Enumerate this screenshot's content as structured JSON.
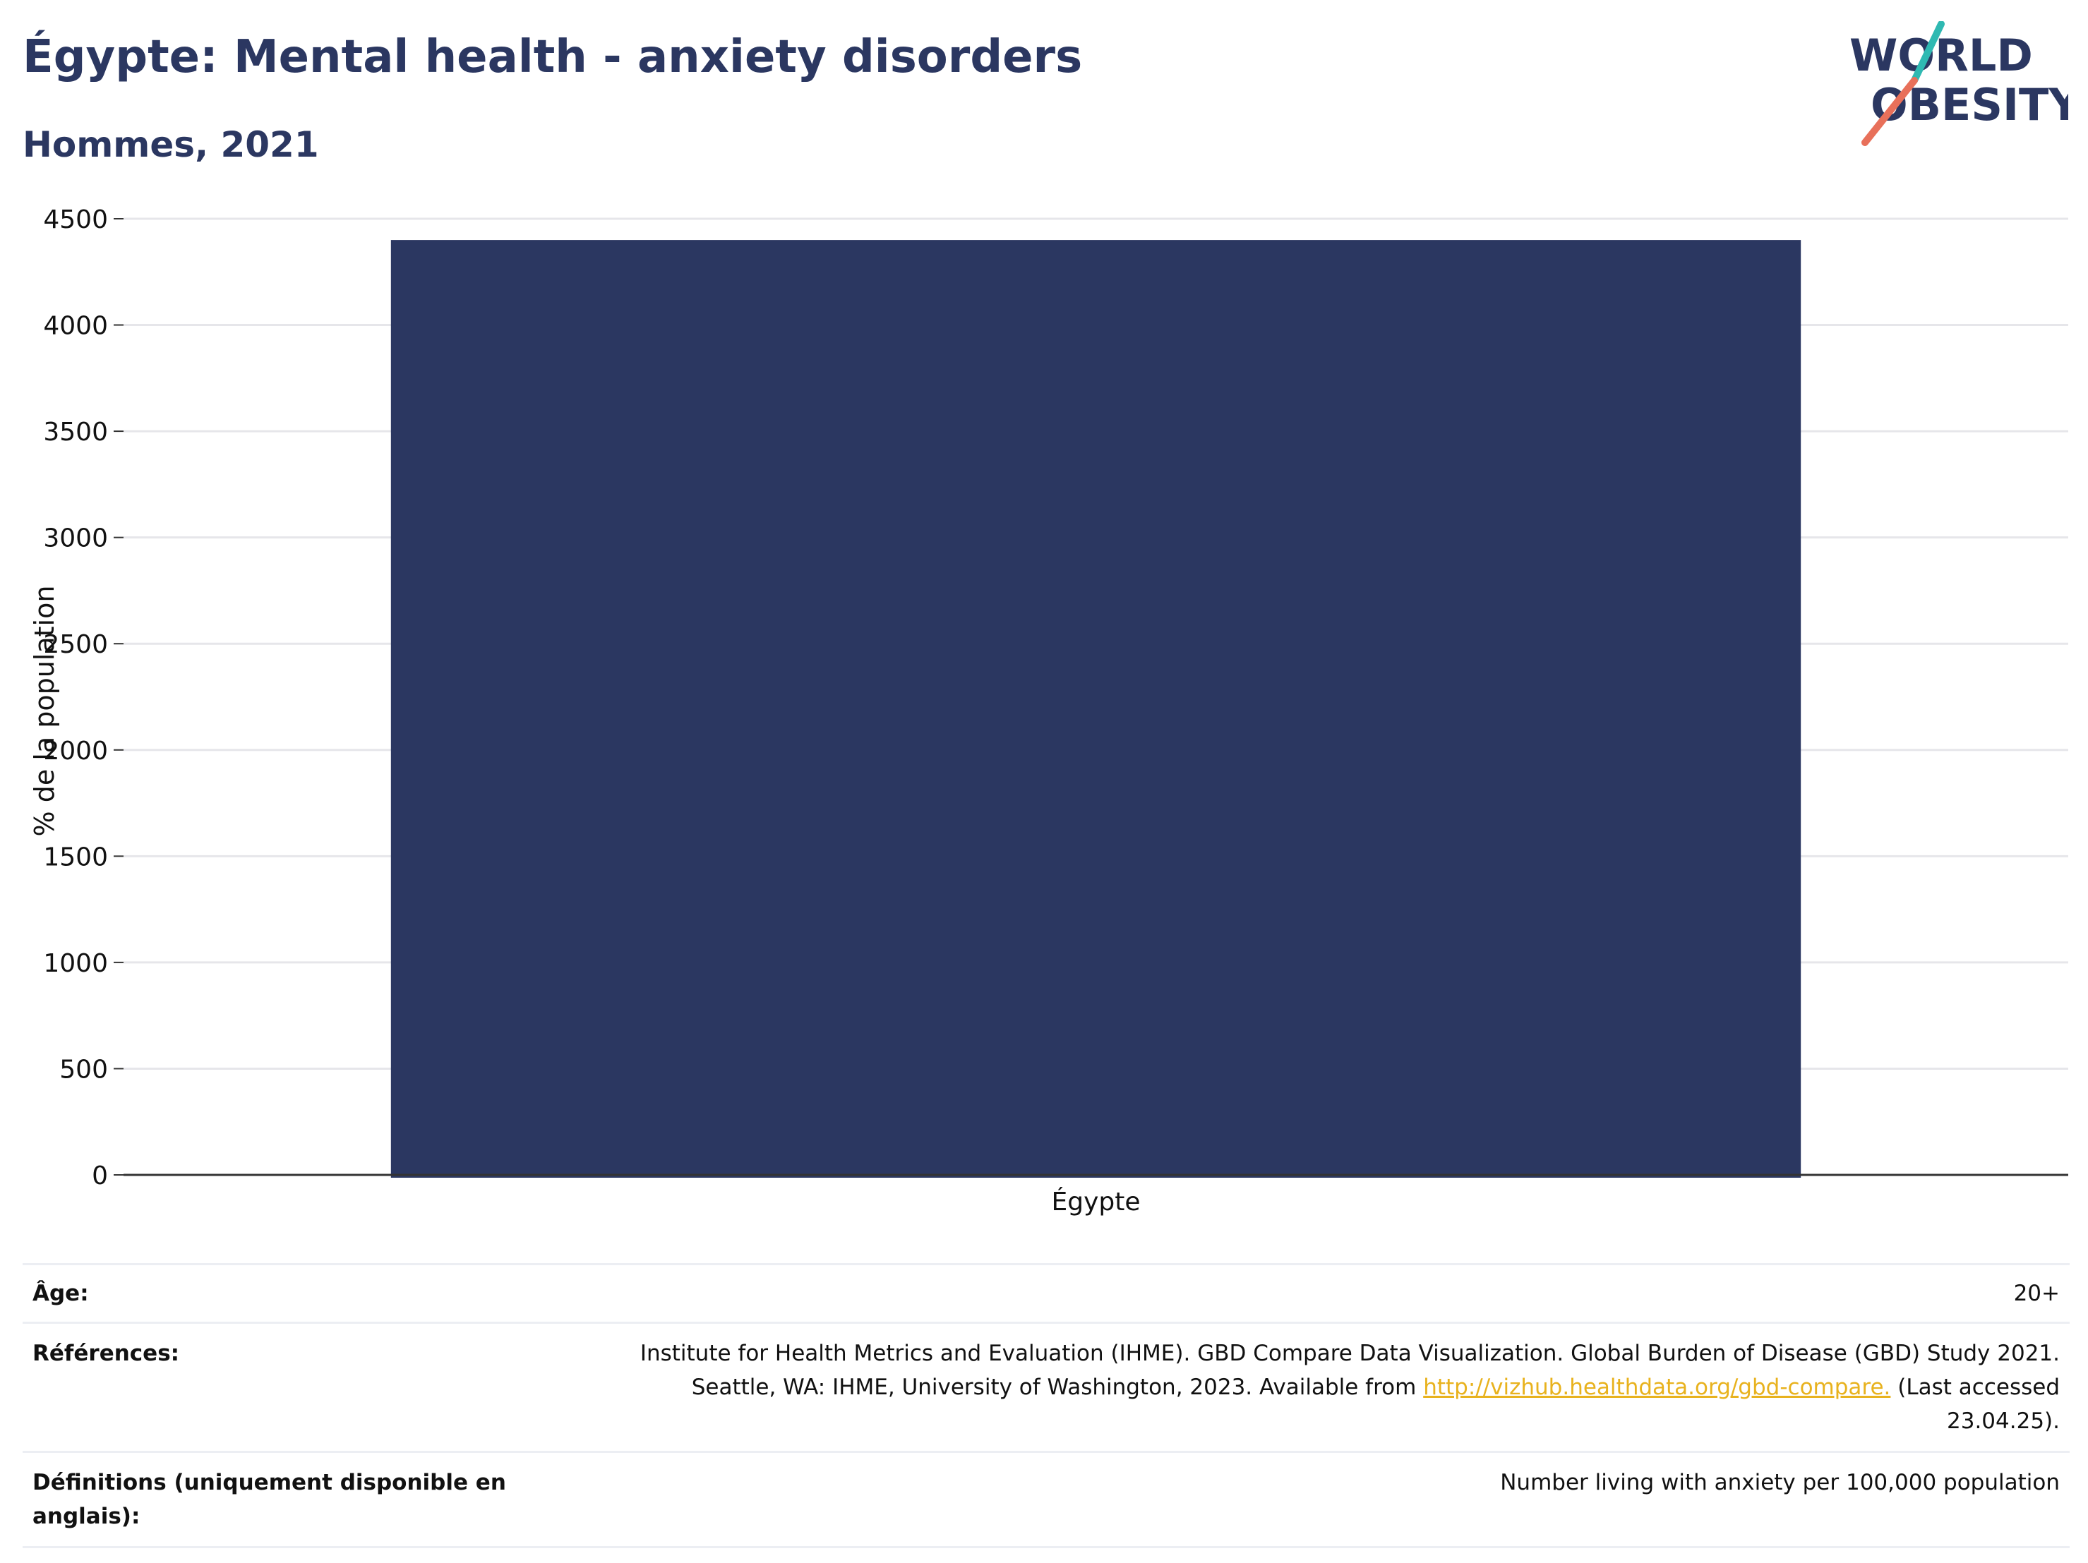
{
  "header": {
    "title": "Égypte: Mental health - anxiety disorders",
    "subtitle": "Hommes, 2021"
  },
  "logo": {
    "line1": "WORLD",
    "line2": "OBESITY",
    "colors": {
      "text": "#2b3761",
      "slash_top": "#2fb9b2",
      "slash_bottom": "#e8705a"
    }
  },
  "chart_data": {
    "type": "bar",
    "categories": [
      "Égypte"
    ],
    "values": [
      4400
    ],
    "ylabel": "% de la population",
    "xlabel": "",
    "ylim": [
      0,
      4500
    ],
    "yticks": [
      0,
      500,
      1000,
      1500,
      2000,
      2500,
      3000,
      3500,
      4000,
      4500
    ],
    "grid": true,
    "colors": {
      "bar": "#2b3761",
      "grid": "#e6e6ea",
      "axis": "#333333"
    }
  },
  "meta": {
    "age_label": "Âge:",
    "age_value": "20+",
    "references_label": "Références:",
    "references_line1": "Institute for Health Metrics and Evaluation (IHME). GBD Compare Data Visualization. Global Burden of Disease (GBD) Study 2021.",
    "references_line2_pre": "Seattle, WA: IHME, University of Washington, 2023. Available from ",
    "references_link": "http://vizhub.healthdata.org/gbd-compare.",
    "references_line2_post": " (Last accessed",
    "references_line3": "23.04.25).",
    "definitions_label": "Définitions (uniquement disponible en anglais):",
    "definitions_value": "Number living with anxiety per 100,000 population"
  }
}
